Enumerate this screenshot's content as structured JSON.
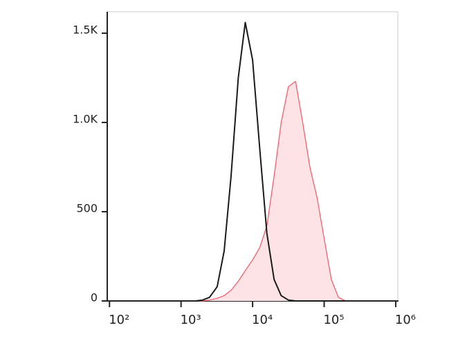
{
  "chart_data": {
    "type": "line",
    "xscale": "log",
    "x": [
      1600,
      2000,
      2500,
      3200,
      4000,
      5000,
      6300,
      7900,
      10000,
      12600,
      15800,
      20000,
      25100,
      31600,
      39800,
      50100,
      63100,
      79400,
      100000,
      126000,
      158000,
      200000
    ],
    "series": [
      {
        "color": "#1a1a1a",
        "values": [
          0,
          5,
          20,
          80,
          280,
          700,
          1250,
          1560,
          1350,
          850,
          380,
          120,
          30,
          5,
          0,
          0,
          0,
          0,
          0,
          0,
          0,
          0
        ]
      },
      {
        "color": "#f0606e",
        "fill": "#fde3e5",
        "values": [
          0,
          0,
          5,
          15,
          30,
          60,
          110,
          170,
          230,
          300,
          420,
          700,
          1000,
          1200,
          1230,
          1000,
          750,
          580,
          350,
          120,
          20,
          0
        ]
      }
    ],
    "xlim": [
      93,
      1070000
    ],
    "xticks": [
      {
        "value": 100,
        "label": "10²"
      },
      {
        "value": 1000,
        "label": "10³"
      },
      {
        "value": 10000,
        "label": "10⁴"
      },
      {
        "value": 100000,
        "label": "10⁵"
      },
      {
        "value": 1000000,
        "label": "10⁶"
      }
    ],
    "ylim": [
      0,
      1620
    ],
    "yticks": [
      0,
      500,
      {
        "value": 1000,
        "label": "1.0K"
      },
      {
        "value": 1500,
        "label": "1.5K"
      }
    ]
  }
}
